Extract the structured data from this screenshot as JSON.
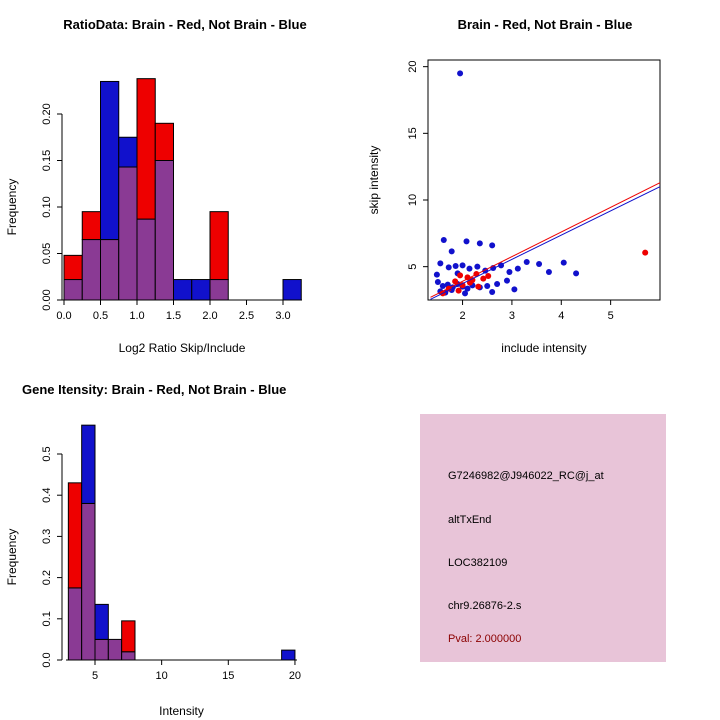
{
  "figure": {
    "background": "#ffffff"
  },
  "chart_data": [
    {
      "type": "bar",
      "subtype": "overlaid-histograms",
      "panel": "top-left",
      "title": "RatioData: Brain - Red, Not Brain - Blue",
      "xlabel": "Log2 Ratio Skip/Include",
      "ylabel": "Frequency",
      "xlim": [
        0,
        3.3
      ],
      "ylim": [
        0,
        0.25
      ],
      "grid": false,
      "legend": "none",
      "bin_width": 0.25,
      "colors": {
        "red": "#EE0000",
        "blue": "#1111CC",
        "overlap": "#8a3a94"
      },
      "bins": [
        {
          "x": 0.0,
          "red": 0.048,
          "blue": 0.022
        },
        {
          "x": 0.25,
          "red": 0.095,
          "blue": 0.065
        },
        {
          "x": 0.5,
          "red": 0.065,
          "blue": 0.235
        },
        {
          "x": 0.75,
          "red": 0.143,
          "blue": 0.175
        },
        {
          "x": 1.0,
          "red": 0.238,
          "blue": 0.087
        },
        {
          "x": 1.25,
          "red": 0.19,
          "blue": 0.15
        },
        {
          "x": 1.5,
          "red": 0.0,
          "blue": 0.022
        },
        {
          "x": 1.75,
          "red": 0.0,
          "blue": 0.022
        },
        {
          "x": 2.0,
          "red": 0.095,
          "blue": 0.022
        },
        {
          "x": 3.0,
          "red": 0.0,
          "blue": 0.022
        }
      ],
      "xticks": [
        0,
        0.5,
        1,
        1.5,
        2,
        2.5,
        3
      ],
      "xtick_labels": [
        "0.0",
        "0.5",
        "1.0",
        "1.5",
        "2.0",
        "2.5",
        "3.0"
      ],
      "yticks": [
        0,
        0.05,
        0.1,
        0.15,
        0.2
      ],
      "ytick_labels": [
        "0.00",
        "0.05",
        "0.10",
        "0.15",
        "0.20"
      ]
    },
    {
      "type": "scatter",
      "panel": "top-right",
      "title": "Brain - Red, Not Brain - Blue",
      "xlabel": "include intensity",
      "ylabel": "skip intensity",
      "xlim": [
        1.3,
        6.0
      ],
      "ylim": [
        2.5,
        20.5
      ],
      "grid": false,
      "legend": "none",
      "series": [
        {
          "name": "Not Brain",
          "color": "#1111CC",
          "points": [
            [
              1.95,
              19.5
            ],
            [
              1.62,
              7.0
            ],
            [
              2.08,
              6.9
            ],
            [
              2.35,
              6.75
            ],
            [
              2.6,
              6.6
            ],
            [
              1.78,
              6.15
            ],
            [
              1.55,
              5.25
            ],
            [
              1.72,
              4.95
            ],
            [
              1.86,
              5.05
            ],
            [
              2.0,
              5.1
            ],
            [
              2.14,
              4.85
            ],
            [
              2.3,
              5.0
            ],
            [
              2.46,
              4.7
            ],
            [
              2.62,
              4.9
            ],
            [
              2.78,
              5.1
            ],
            [
              2.95,
              4.6
            ],
            [
              3.12,
              4.85
            ],
            [
              3.3,
              5.35
            ],
            [
              3.55,
              5.2
            ],
            [
              3.75,
              4.6
            ],
            [
              4.05,
              5.3
            ],
            [
              4.3,
              4.5
            ],
            [
              1.5,
              3.85
            ],
            [
              1.6,
              3.55
            ],
            [
              1.7,
              3.65
            ],
            [
              1.8,
              3.45
            ],
            [
              1.9,
              3.7
            ],
            [
              2.0,
              3.5
            ],
            [
              2.1,
              3.35
            ],
            [
              2.2,
              3.6
            ],
            [
              2.35,
              3.45
            ],
            [
              2.5,
              3.55
            ],
            [
              2.7,
              3.7
            ],
            [
              2.9,
              3.95
            ],
            [
              1.55,
              3.15
            ],
            [
              1.65,
              3.05
            ],
            [
              1.78,
              3.25
            ],
            [
              2.05,
              3.0
            ],
            [
              2.6,
              3.1
            ],
            [
              3.05,
              3.3
            ],
            [
              1.48,
              4.4
            ],
            [
              1.9,
              4.5
            ]
          ]
        },
        {
          "name": "Brain",
          "color": "#EE0000",
          "points": [
            [
              5.7,
              6.05
            ],
            [
              1.95,
              4.35
            ],
            [
              2.1,
              4.2
            ],
            [
              2.28,
              4.45
            ],
            [
              2.42,
              4.1
            ],
            [
              2.2,
              4.0
            ],
            [
              1.85,
              3.9
            ],
            [
              2.0,
              3.62
            ],
            [
              2.32,
              3.5
            ],
            [
              1.72,
              3.35
            ],
            [
              1.92,
              3.2
            ],
            [
              2.52,
              4.3
            ],
            [
              2.15,
              3.8
            ],
            [
              1.6,
              3.0
            ]
          ]
        }
      ],
      "fit_lines": [
        {
          "color": "#EE0000",
          "x1": 1.35,
          "y1": 2.7,
          "x2": 6.0,
          "y2": 11.3
        },
        {
          "color": "#1111CC",
          "x1": 1.35,
          "y1": 2.55,
          "x2": 6.0,
          "y2": 11.0
        }
      ],
      "xticks": [
        2,
        3,
        4,
        5
      ],
      "xtick_labels": [
        "2",
        "3",
        "4",
        "5"
      ],
      "yticks": [
        5,
        10,
        15,
        20
      ],
      "ytick_labels": [
        "5",
        "10",
        "15",
        "20"
      ]
    },
    {
      "type": "bar",
      "subtype": "overlaid-histograms",
      "panel": "bottom-left",
      "title": "Gene Itensity: Brain - Red, Not Brain - Blue",
      "xlabel": "Intensity",
      "ylabel": "Frequency",
      "xlim": [
        2.5,
        20.5
      ],
      "ylim": [
        0,
        0.58
      ],
      "grid": false,
      "legend": "none",
      "bin_width": 1,
      "colors": {
        "red": "#EE0000",
        "blue": "#1111CC",
        "overlap": "#8a3a94"
      },
      "bins": [
        {
          "x": 3,
          "red": 0.43,
          "blue": 0.175
        },
        {
          "x": 4,
          "red": 0.38,
          "blue": 0.57
        },
        {
          "x": 5,
          "red": 0.05,
          "blue": 0.135
        },
        {
          "x": 6,
          "red": 0.05,
          "blue": 0.05
        },
        {
          "x": 7,
          "red": 0.095,
          "blue": 0.02
        },
        {
          "x": 19,
          "red": 0.0,
          "blue": 0.024
        }
      ],
      "xticks": [
        5,
        10,
        15,
        20
      ],
      "xtick_labels": [
        "5",
        "10",
        "15",
        "20"
      ],
      "yticks": [
        0,
        0.1,
        0.2,
        0.3,
        0.4,
        0.5
      ],
      "ytick_labels": [
        "0.0",
        "0.1",
        "0.2",
        "0.3",
        "0.4",
        "0.5"
      ]
    }
  ],
  "info_box": {
    "panel": "bottom-right",
    "bg_color": "#e8c4d8",
    "probe_id": "G7246982@J946022_RC@j_at",
    "event_type": "altTxEnd",
    "gene": "LOC382109",
    "location": "chr9.26876-2.s",
    "pval": "Pval: 2.000000",
    "pval_color": "#8B0000"
  }
}
